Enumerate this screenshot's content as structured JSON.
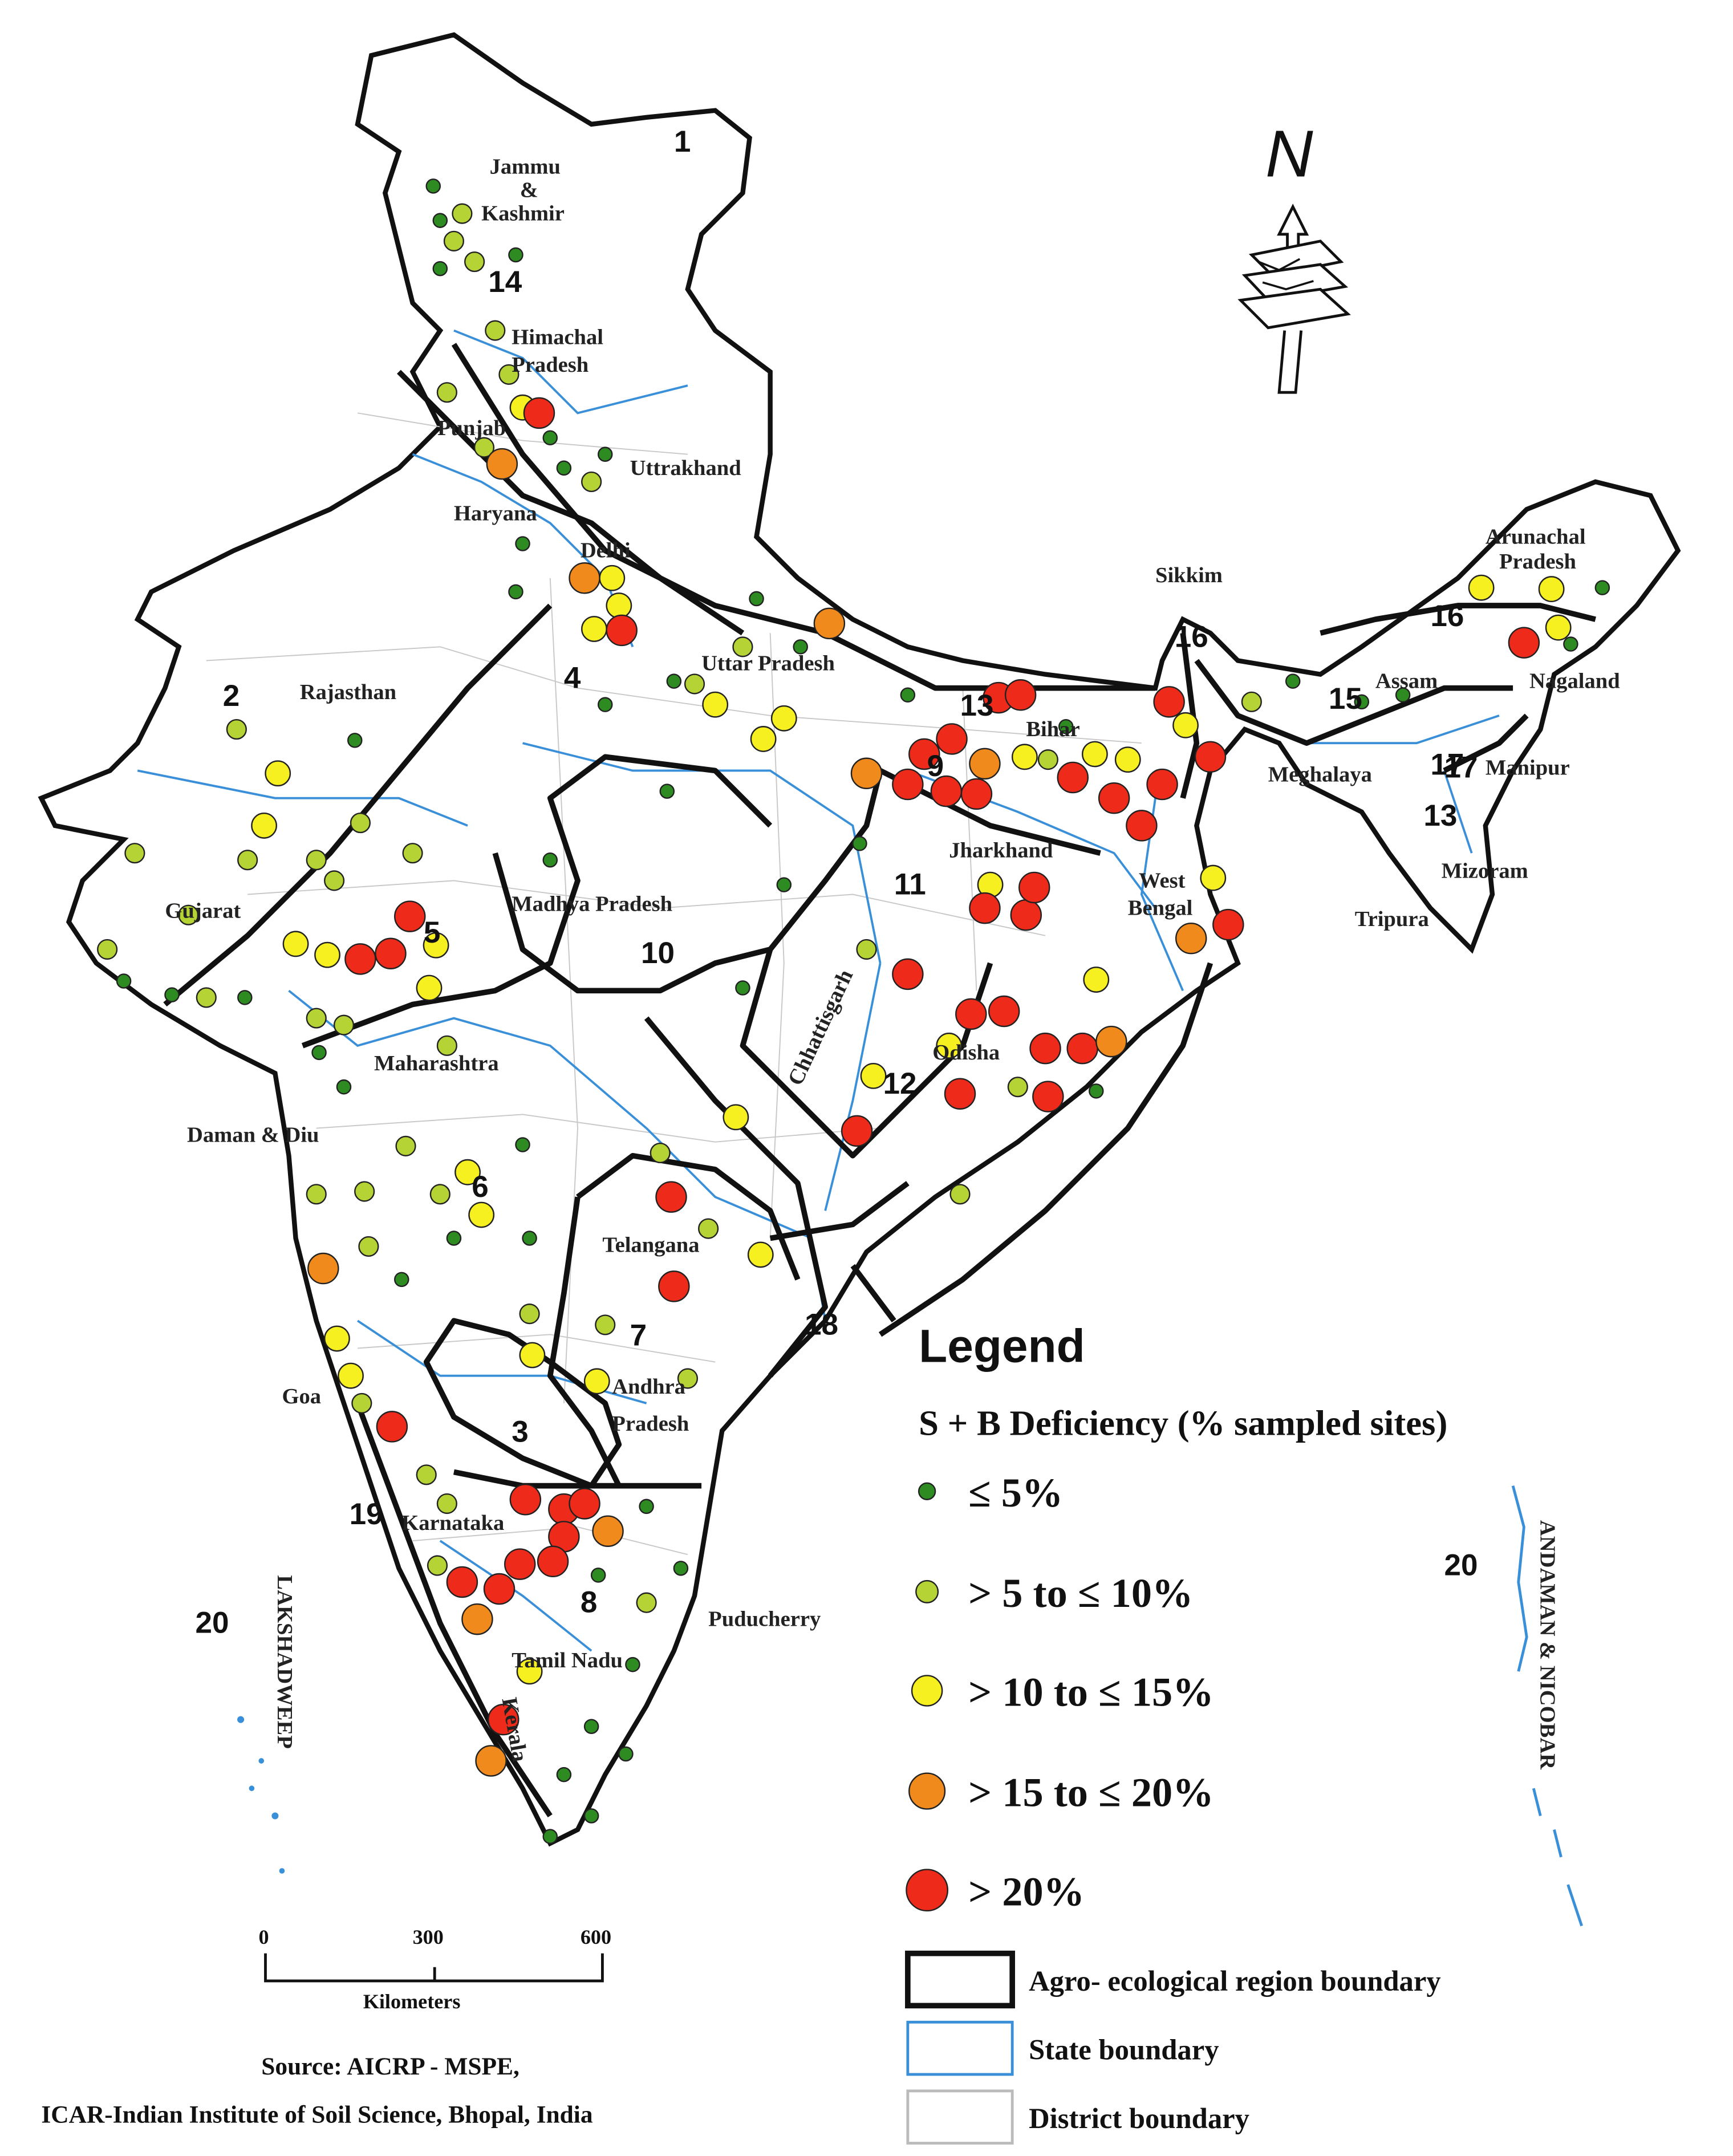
{
  "state_labels": {
    "jammu_kashmir": [
      "Jammu",
      "&",
      "Kashmir"
    ],
    "himachal": [
      "Himachal",
      "Pradesh"
    ],
    "punjab": "Punjab",
    "uttrakhand": "Uttrakhand",
    "haryana": "Haryana",
    "delhi": "Delhi",
    "rajasthan": "Rajasthan",
    "uttar_pradesh": "Uttar Pradesh",
    "sikkim": "Sikkim",
    "arunachal": [
      "Arunachal",
      "Pradesh"
    ],
    "assam": "Assam",
    "nagaland": "Nagaland",
    "bihar": "Bihar",
    "meghalaya": "Meghalaya",
    "manipur": "Manipur",
    "mizoram": "Mizoram",
    "tripura": "Tripura",
    "jharkhand": "Jharkhand",
    "west_bengal": [
      "West",
      "Bengal"
    ],
    "gujarat": "Gujarat",
    "madhya_pradesh": "Madhya Pradesh",
    "chhattisgarh": "Chhattisgarh",
    "odisha": "Odisha",
    "maharashtra": "Maharashtra",
    "daman_diu": "Daman & Diu",
    "telangana": "Telangana",
    "andhra": [
      "Andhra",
      "Pradesh"
    ],
    "goa": "Goa",
    "karnataka": "Karnataka",
    "puducherry": "Puducherry",
    "tamil_nadu": "Tamil Nadu",
    "kerala": "Kerala",
    "lakshadweep": "LAKSHADWEEP",
    "andaman": "ANDAMAN & NICOBAR"
  },
  "region_numbers": [
    "1",
    "2",
    "3",
    "4",
    "5",
    "6",
    "7",
    "8",
    "9",
    "10",
    "11",
    "12",
    "13",
    "14",
    "15",
    "16",
    "17",
    "18",
    "19",
    "20"
  ],
  "legend": {
    "title": "Legend",
    "subtitle": "S + B  Deficiency (% sampled sites)",
    "classes": [
      {
        "label": "≤ 5%",
        "color": "#2e8b22"
      },
      {
        "label": "> 5 to ≤ 10%",
        "color": "#b5d334"
      },
      {
        "label": "> 10 to ≤ 15%",
        "color": "#f7f021"
      },
      {
        "label": "> 15 to ≤ 20%",
        "color": "#f18a1c"
      },
      {
        "label": "> 20%",
        "color": "#ee2a1b"
      }
    ],
    "boundaries": [
      {
        "label": "Agro- ecological region boundary",
        "color": "#111111"
      },
      {
        "label": "State boundary",
        "color": "#3a8fd9"
      },
      {
        "label": "District boundary",
        "color": "#bbbbbb"
      }
    ]
  },
  "scale_bar": {
    "ticks": [
      "0",
      "300",
      "600"
    ],
    "unit": "Kilometers"
  },
  "north_arrow": {
    "letter": "N"
  },
  "source": {
    "line1": "Source: AICRP - MSPE,",
    "line2": "ICAR-Indian Institute of Soil Science, Bhopal, India"
  }
}
